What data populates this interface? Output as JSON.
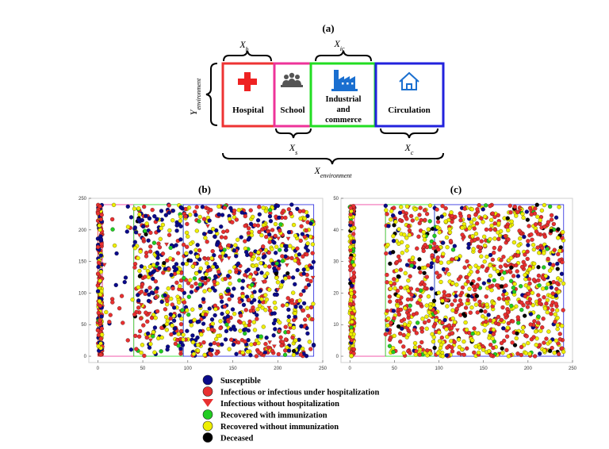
{
  "panel_a": {
    "label": "(a)",
    "blocks": [
      {
        "name": "Hospital",
        "icon": "hospital-cross-icon",
        "color": "#ee3333"
      },
      {
        "name": "School",
        "icon": "people-group-icon",
        "color": "#ee3399"
      },
      {
        "name": "Industrial and commerce",
        "lines": [
          "Industrial",
          "and",
          "commerce"
        ],
        "icon": "factory-icon",
        "color": "#22dd22"
      },
      {
        "name": "Circulation",
        "icon": "house-icon",
        "color": "#2222dd"
      }
    ],
    "dims": {
      "xh": {
        "main": "X",
        "sub": "h"
      },
      "xic": {
        "main": "X",
        "sub": "ic"
      },
      "xs": {
        "main": "X",
        "sub": "s"
      },
      "xc": {
        "main": "X",
        "sub": "c"
      },
      "xenv": {
        "main": "X",
        "sub": "environment"
      },
      "yenv": {
        "main": "Y",
        "sub": "environment"
      }
    }
  },
  "chart_data": [
    {
      "type": "scatter",
      "panel": "(b)",
      "xlim": [
        -10,
        250
      ],
      "ylim": [
        -10,
        250
      ],
      "xticks": [
        0,
        50,
        100,
        150,
        200,
        250
      ],
      "yticks": [
        0,
        50,
        100,
        150,
        200,
        250
      ],
      "zones_x": [
        0,
        5,
        40,
        95,
        240
      ],
      "zone_colors": [
        "#ee3333",
        "#ee3399",
        "#22dd22",
        "#2222dd"
      ],
      "point_count_estimate": 1300,
      "composition": {
        "susceptible": 0.3,
        "infectious": 0.37,
        "infectious_without_hospitalization": 0.03,
        "recovered_immune": 0.04,
        "recovered_not_immune": 0.25,
        "deceased": 0.01
      }
    },
    {
      "type": "scatter",
      "panel": "(c)",
      "xlim": [
        -10,
        250
      ],
      "ylim": [
        -2,
        50
      ],
      "xticks": [
        0,
        50,
        100,
        150,
        200,
        250
      ],
      "yticks": [
        0,
        10,
        20,
        30,
        40,
        50
      ],
      "zones_x": [
        0,
        5,
        40,
        95,
        240
      ],
      "zone_colors": [
        "#ee3333",
        "#ee3399",
        "#22dd22",
        "#2222dd"
      ],
      "point_count_estimate": 1300,
      "composition": {
        "susceptible": 0.06,
        "infectious": 0.46,
        "infectious_without_hospitalization": 0.02,
        "recovered_immune": 0.04,
        "recovered_not_immune": 0.38,
        "deceased": 0.04
      }
    }
  ],
  "legend": {
    "entries": [
      {
        "label": "Susceptible",
        "color": "#0a0a8a",
        "marker": "circle"
      },
      {
        "label": "Infectious or infectious under hospitalization",
        "color": "#e83030",
        "marker": "circle"
      },
      {
        "label": "Infectious without hospitalization",
        "color": "#e83030",
        "marker": "triangle"
      },
      {
        "label": "Recovered with immunization",
        "color": "#22cc22",
        "marker": "circle"
      },
      {
        "label": "Recovered without immunization",
        "color": "#eeee00",
        "marker": "circle"
      },
      {
        "label": "Deceased",
        "color": "#000000",
        "marker": "circle"
      }
    ]
  }
}
